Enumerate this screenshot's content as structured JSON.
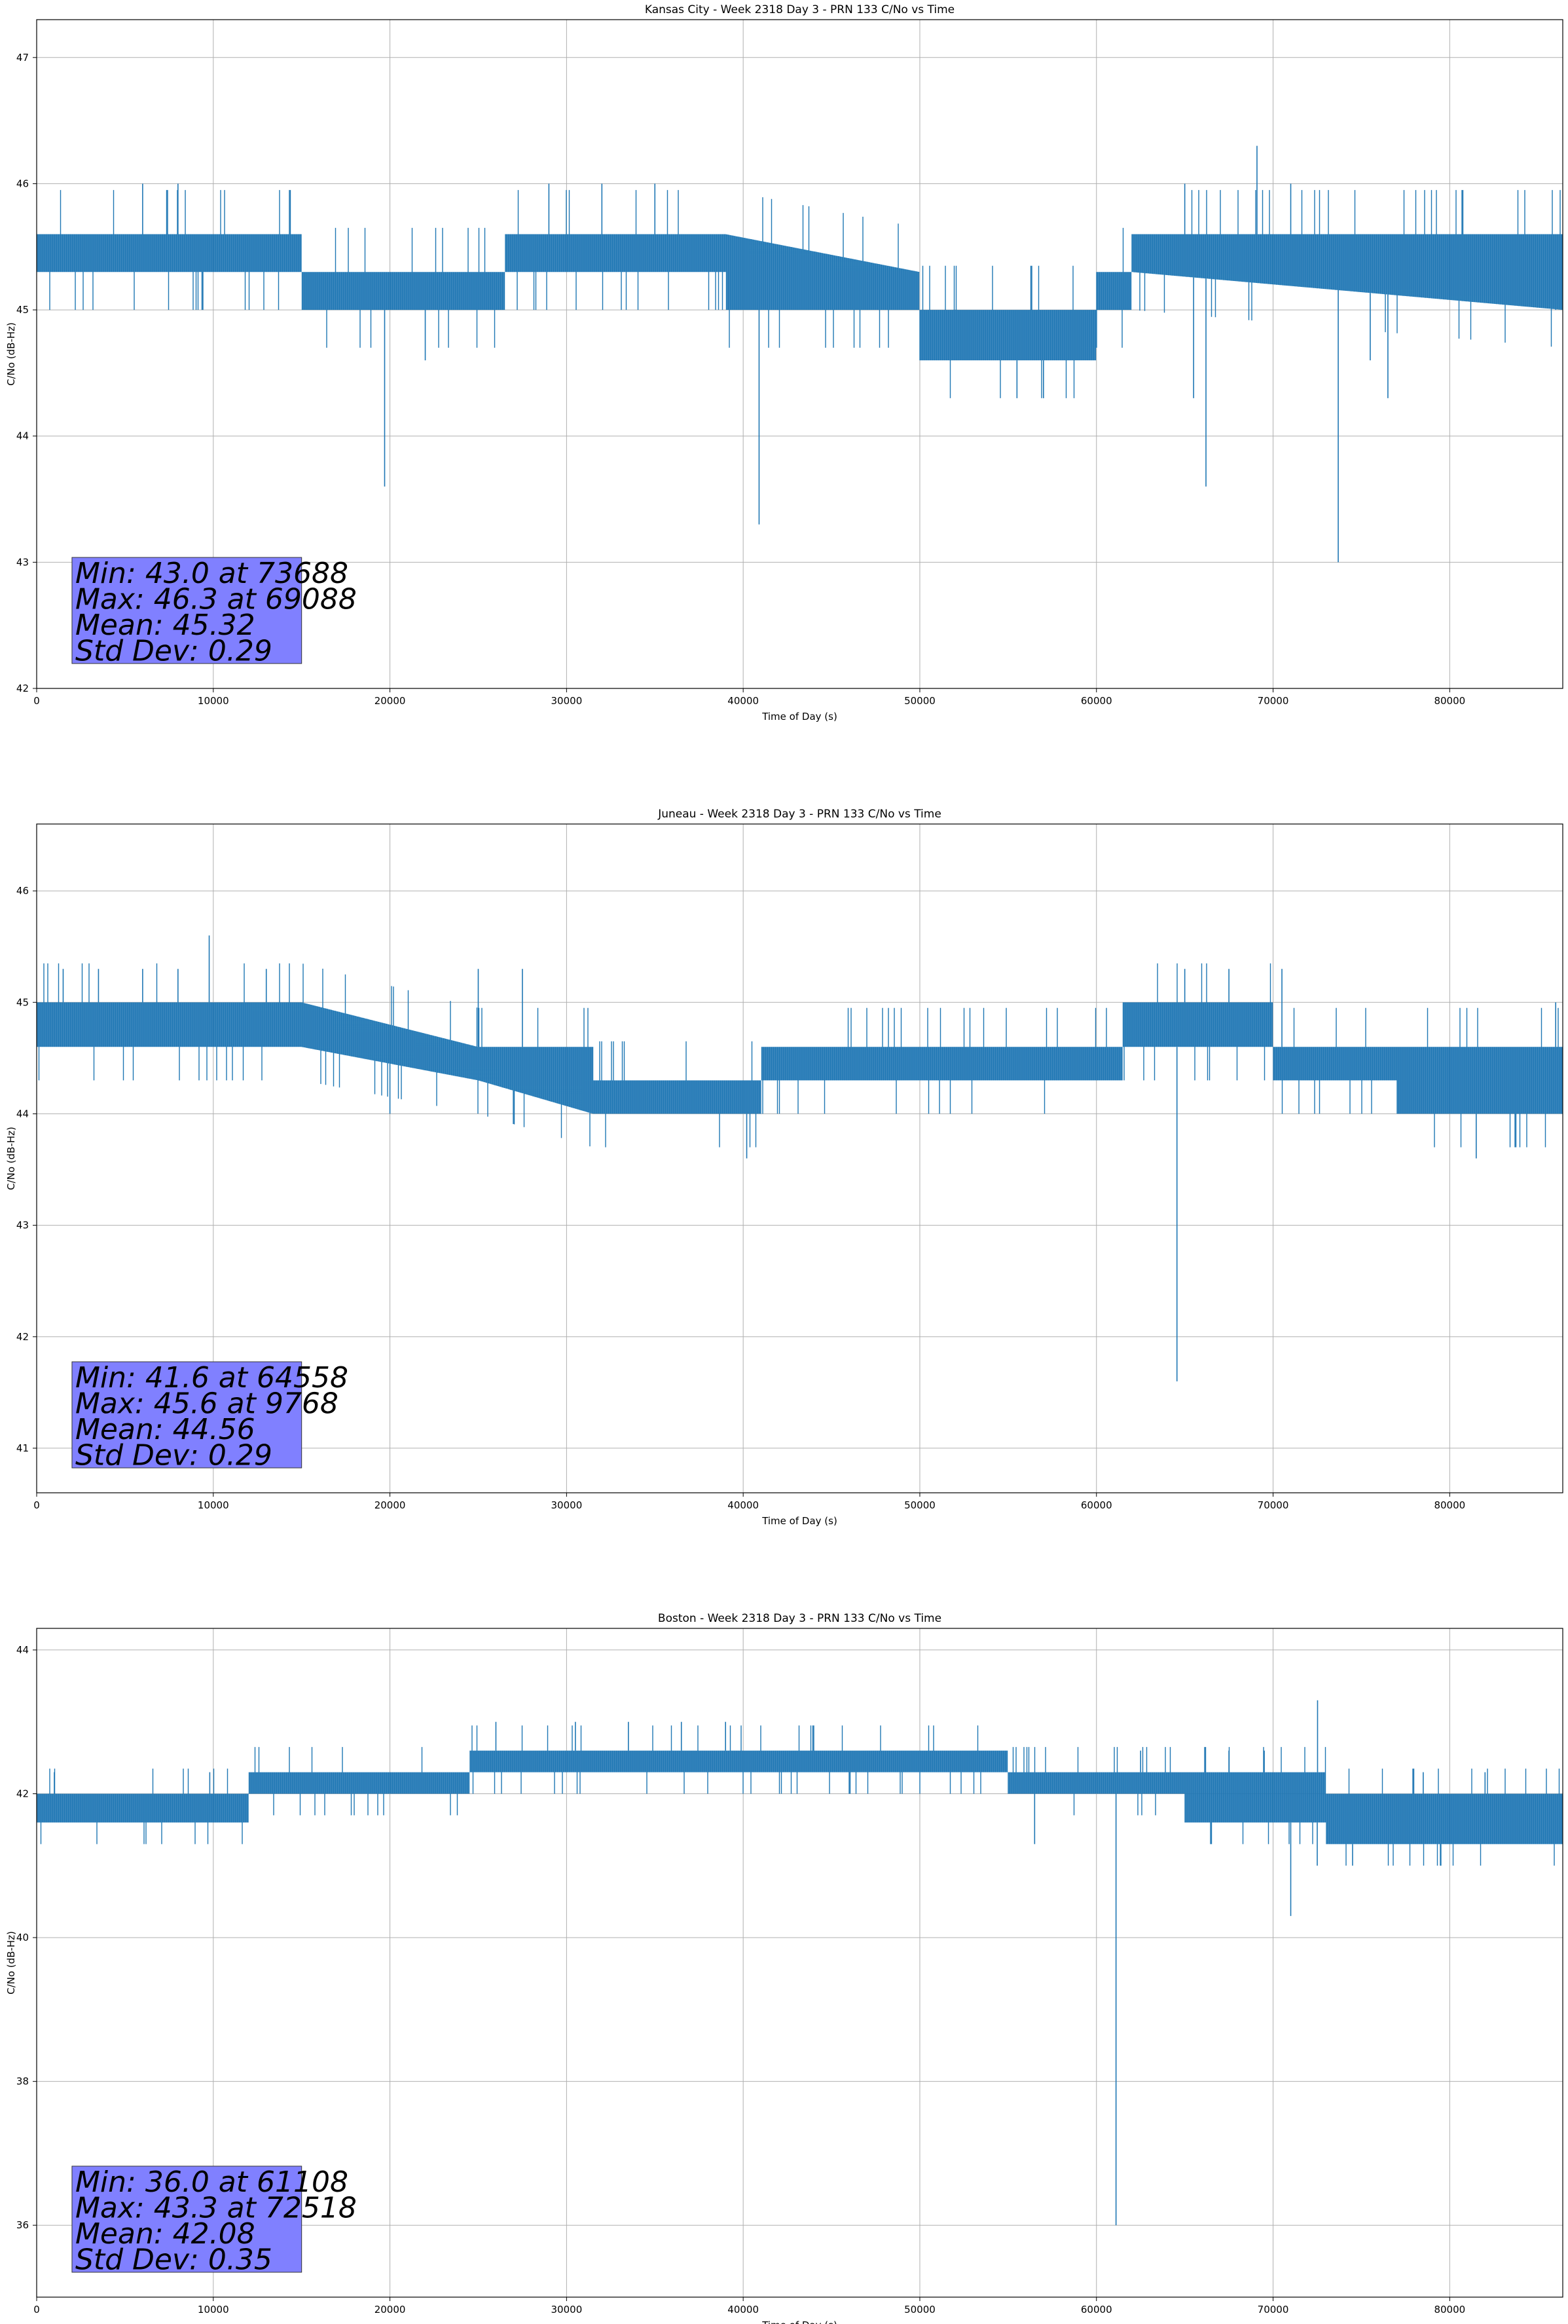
{
  "chart_data": [
    {
      "type": "line",
      "title": "Kansas City - Week 2318 Day 3 - PRN 133 C/No vs Time",
      "xlabel": "Time of Day (s)",
      "ylabel": "C/No (dB-Hz)",
      "xlim": [
        0,
        86400
      ],
      "ylim": [
        42,
        47.3
      ],
      "xticks": [
        0,
        10000,
        20000,
        30000,
        40000,
        50000,
        60000,
        70000,
        80000
      ],
      "yticks": [
        42,
        43,
        44,
        45,
        46,
        47
      ],
      "grid": true,
      "line_color": "#1f77b4",
      "series": [
        {
          "x": [
            0,
            14999,
            15000,
            26499,
            26500,
            38999,
            39000,
            49999,
            50000,
            59999,
            60000,
            61999,
            62000,
            86400
          ],
          "low": [
            45.3,
            45.3,
            45.0,
            45.0,
            45.3,
            45.3,
            45.0,
            45.0,
            44.6,
            44.6,
            45.0,
            45.0,
            45.3,
            45.0
          ],
          "high": [
            45.6,
            45.6,
            45.3,
            45.3,
            45.6,
            45.6,
            45.6,
            45.3,
            45.0,
            45.0,
            45.3,
            45.3,
            45.6,
            45.6
          ]
        }
      ],
      "spikes": [
        {
          "x": 19700,
          "y": 43.6
        },
        {
          "x": 40900,
          "y": 43.3
        },
        {
          "x": 66200,
          "y": 43.6
        },
        {
          "x": 73688,
          "y": 43.0
        },
        {
          "x": 69088,
          "y": 46.3
        },
        {
          "x": 6000,
          "y": 46.0
        },
        {
          "x": 8000,
          "y": 46.0
        },
        {
          "x": 29000,
          "y": 46.0
        },
        {
          "x": 32000,
          "y": 46.0
        },
        {
          "x": 35000,
          "y": 46.0
        },
        {
          "x": 65000,
          "y": 46.0
        },
        {
          "x": 71000,
          "y": 46.0
        },
        {
          "x": 55500,
          "y": 44.3
        },
        {
          "x": 57000,
          "y": 44.3
        },
        {
          "x": 65500,
          "y": 44.3
        },
        {
          "x": 76500,
          "y": 44.3
        },
        {
          "x": 75500,
          "y": 44.6
        },
        {
          "x": 22000,
          "y": 44.6
        },
        {
          "x": 86000,
          "y": 45.0
        }
      ],
      "stats": [
        "Min: 43.0 at 73688",
        "Max: 46.3 at 69088",
        "Mean: 45.32",
        "Std Dev: 0.29"
      ]
    },
    {
      "type": "line",
      "title": "Juneau - Week 2318 Day 3 - PRN 133 C/No vs Time",
      "xlabel": "Time of Day (s)",
      "ylabel": "C/No (dB-Hz)",
      "xlim": [
        0,
        86400
      ],
      "ylim": [
        40.6,
        46.6
      ],
      "xticks": [
        0,
        10000,
        20000,
        30000,
        40000,
        50000,
        60000,
        70000,
        80000
      ],
      "yticks": [
        41,
        42,
        43,
        44,
        45,
        46
      ],
      "grid": true,
      "line_color": "#1f77b4",
      "series": [
        {
          "x": [
            0,
            15000,
            15001,
            24999,
            25000,
            31499,
            31500,
            40999,
            41000,
            61499,
            61500,
            70000,
            70001,
            76999,
            77000,
            86400
          ],
          "low": [
            44.6,
            44.6,
            44.6,
            44.3,
            44.3,
            44.0,
            44.0,
            44.0,
            44.3,
            44.3,
            44.6,
            44.6,
            44.3,
            44.3,
            44.0,
            44.0
          ],
          "high": [
            45.0,
            45.0,
            45.0,
            44.6,
            44.6,
            44.6,
            44.3,
            44.3,
            44.6,
            44.6,
            45.0,
            45.0,
            44.6,
            44.6,
            44.6,
            44.6
          ]
        }
      ],
      "spikes": [
        {
          "x": 64558,
          "y": 41.6
        },
        {
          "x": 9768,
          "y": 45.6
        },
        {
          "x": 40200,
          "y": 43.6
        },
        {
          "x": 81500,
          "y": 43.6
        },
        {
          "x": 1500,
          "y": 45.3
        },
        {
          "x": 3500,
          "y": 45.3
        },
        {
          "x": 6000,
          "y": 45.3
        },
        {
          "x": 8000,
          "y": 45.3
        },
        {
          "x": 13000,
          "y": 45.3
        },
        {
          "x": 25000,
          "y": 45.3
        },
        {
          "x": 27500,
          "y": 45.3
        },
        {
          "x": 65000,
          "y": 45.3
        },
        {
          "x": 67500,
          "y": 45.3
        },
        {
          "x": 70500,
          "y": 45.3
        },
        {
          "x": 20000,
          "y": 44.0
        },
        {
          "x": 86000,
          "y": 45.0
        }
      ],
      "stats": [
        "Min: 41.6 at 64558",
        "Max: 45.6 at 9768",
        "Mean: 44.56",
        "Std Dev: 0.29"
      ]
    },
    {
      "type": "line",
      "title": "Boston - Week 2318 Day 3 - PRN 133 C/No vs Time",
      "xlabel": "Time of Day (s)",
      "ylabel": "C/No (dB-Hz)",
      "xlim": [
        0,
        86400
      ],
      "ylim": [
        35,
        44.3
      ],
      "xticks": [
        0,
        10000,
        20000,
        30000,
        40000,
        50000,
        60000,
        70000,
        80000
      ],
      "yticks": [
        36,
        38,
        40,
        42,
        44
      ],
      "grid": true,
      "line_color": "#1f77b4",
      "series": [
        {
          "x": [
            0,
            11999,
            12000,
            19999,
            20000,
            24499,
            24500,
            29499,
            29500,
            39999,
            40000,
            54999,
            55000,
            64999,
            65000,
            72999,
            73000,
            86400
          ],
          "low": [
            41.6,
            41.6,
            42.0,
            42.0,
            42.0,
            42.0,
            42.3,
            42.3,
            42.3,
            42.3,
            42.3,
            42.3,
            42.0,
            42.0,
            41.6,
            41.6,
            41.3,
            41.3
          ],
          "high": [
            42.0,
            42.0,
            42.3,
            42.3,
            42.3,
            42.3,
            42.6,
            42.6,
            42.6,
            42.6,
            42.6,
            42.6,
            42.3,
            42.3,
            42.3,
            42.3,
            42.0,
            42.0
          ]
        }
      ],
      "spikes": [
        {
          "x": 61108,
          "y": 36.0
        },
        {
          "x": 72518,
          "y": 43.3
        },
        {
          "x": 71000,
          "y": 40.3
        },
        {
          "x": 72500,
          "y": 41.0
        },
        {
          "x": 74500,
          "y": 41.0
        },
        {
          "x": 79500,
          "y": 41.0
        },
        {
          "x": 1000,
          "y": 42.3
        },
        {
          "x": 9800,
          "y": 42.3
        },
        {
          "x": 26000,
          "y": 43.0
        },
        {
          "x": 30500,
          "y": 43.0
        },
        {
          "x": 33500,
          "y": 43.0
        },
        {
          "x": 36500,
          "y": 43.0
        },
        {
          "x": 39000,
          "y": 43.0
        },
        {
          "x": 56500,
          "y": 41.3
        },
        {
          "x": 62500,
          "y": 42.6
        },
        {
          "x": 67500,
          "y": 42.6
        },
        {
          "x": 69500,
          "y": 42.6
        },
        {
          "x": 78500,
          "y": 42.3
        },
        {
          "x": 82000,
          "y": 42.3
        }
      ],
      "stats": [
        "Min: 36.0 at 61108",
        "Max: 43.3 at 72518",
        "Mean: 42.08",
        "Std Dev: 0.35"
      ]
    }
  ],
  "colors": {
    "series": "#1f77b4",
    "grid": "#b0b0b0",
    "stats_box": "#8080ff"
  }
}
